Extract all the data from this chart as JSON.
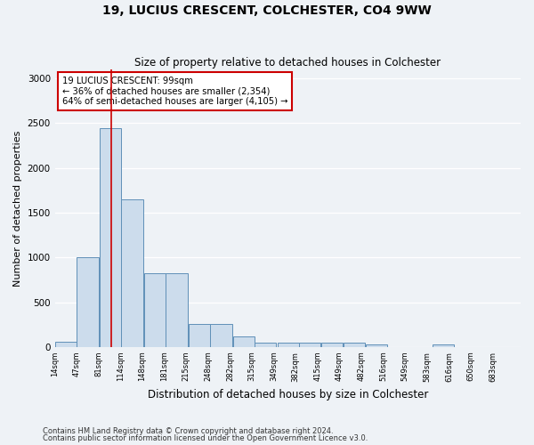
{
  "title1": "19, LUCIUS CRESCENT, COLCHESTER, CO4 9WW",
  "title2": "Size of property relative to detached houses in Colchester",
  "xlabel": "Distribution of detached houses by size in Colchester",
  "ylabel": "Number of detached properties",
  "bar_left_edges": [
    14,
    47,
    81,
    114,
    148,
    181,
    215,
    248,
    282,
    315,
    349,
    382,
    415,
    449,
    482,
    516,
    549,
    583,
    616,
    650
  ],
  "bar_heights": [
    60,
    1000,
    2450,
    1650,
    820,
    820,
    260,
    260,
    120,
    50,
    50,
    50,
    50,
    50,
    30,
    0,
    0,
    30,
    0,
    0
  ],
  "bin_width": 33,
  "property_size": 99,
  "bar_color": "#ccdcec",
  "bar_edge_color": "#6090b8",
  "vline_color": "#cc0000",
  "annotation_text": "19 LUCIUS CRESCENT: 99sqm\n← 36% of detached houses are smaller (2,354)\n64% of semi-detached houses are larger (4,105) →",
  "annotation_box_color": "#ffffff",
  "annotation_box_edge": "#cc0000",
  "ylim": [
    0,
    3100
  ],
  "yticks": [
    0,
    500,
    1000,
    1500,
    2000,
    2500,
    3000
  ],
  "xtick_labels": [
    "14sqm",
    "47sqm",
    "81sqm",
    "114sqm",
    "148sqm",
    "181sqm",
    "215sqm",
    "248sqm",
    "282sqm",
    "315sqm",
    "349sqm",
    "382sqm",
    "415sqm",
    "449sqm",
    "482sqm",
    "516sqm",
    "549sqm",
    "583sqm",
    "616sqm",
    "650sqm",
    "683sqm"
  ],
  "footnote1": "Contains HM Land Registry data © Crown copyright and database right 2024.",
  "footnote2": "Contains public sector information licensed under the Open Government Licence v3.0.",
  "bg_color": "#eef2f6",
  "plot_bg_color": "#eef2f6",
  "grid_color": "#ffffff"
}
